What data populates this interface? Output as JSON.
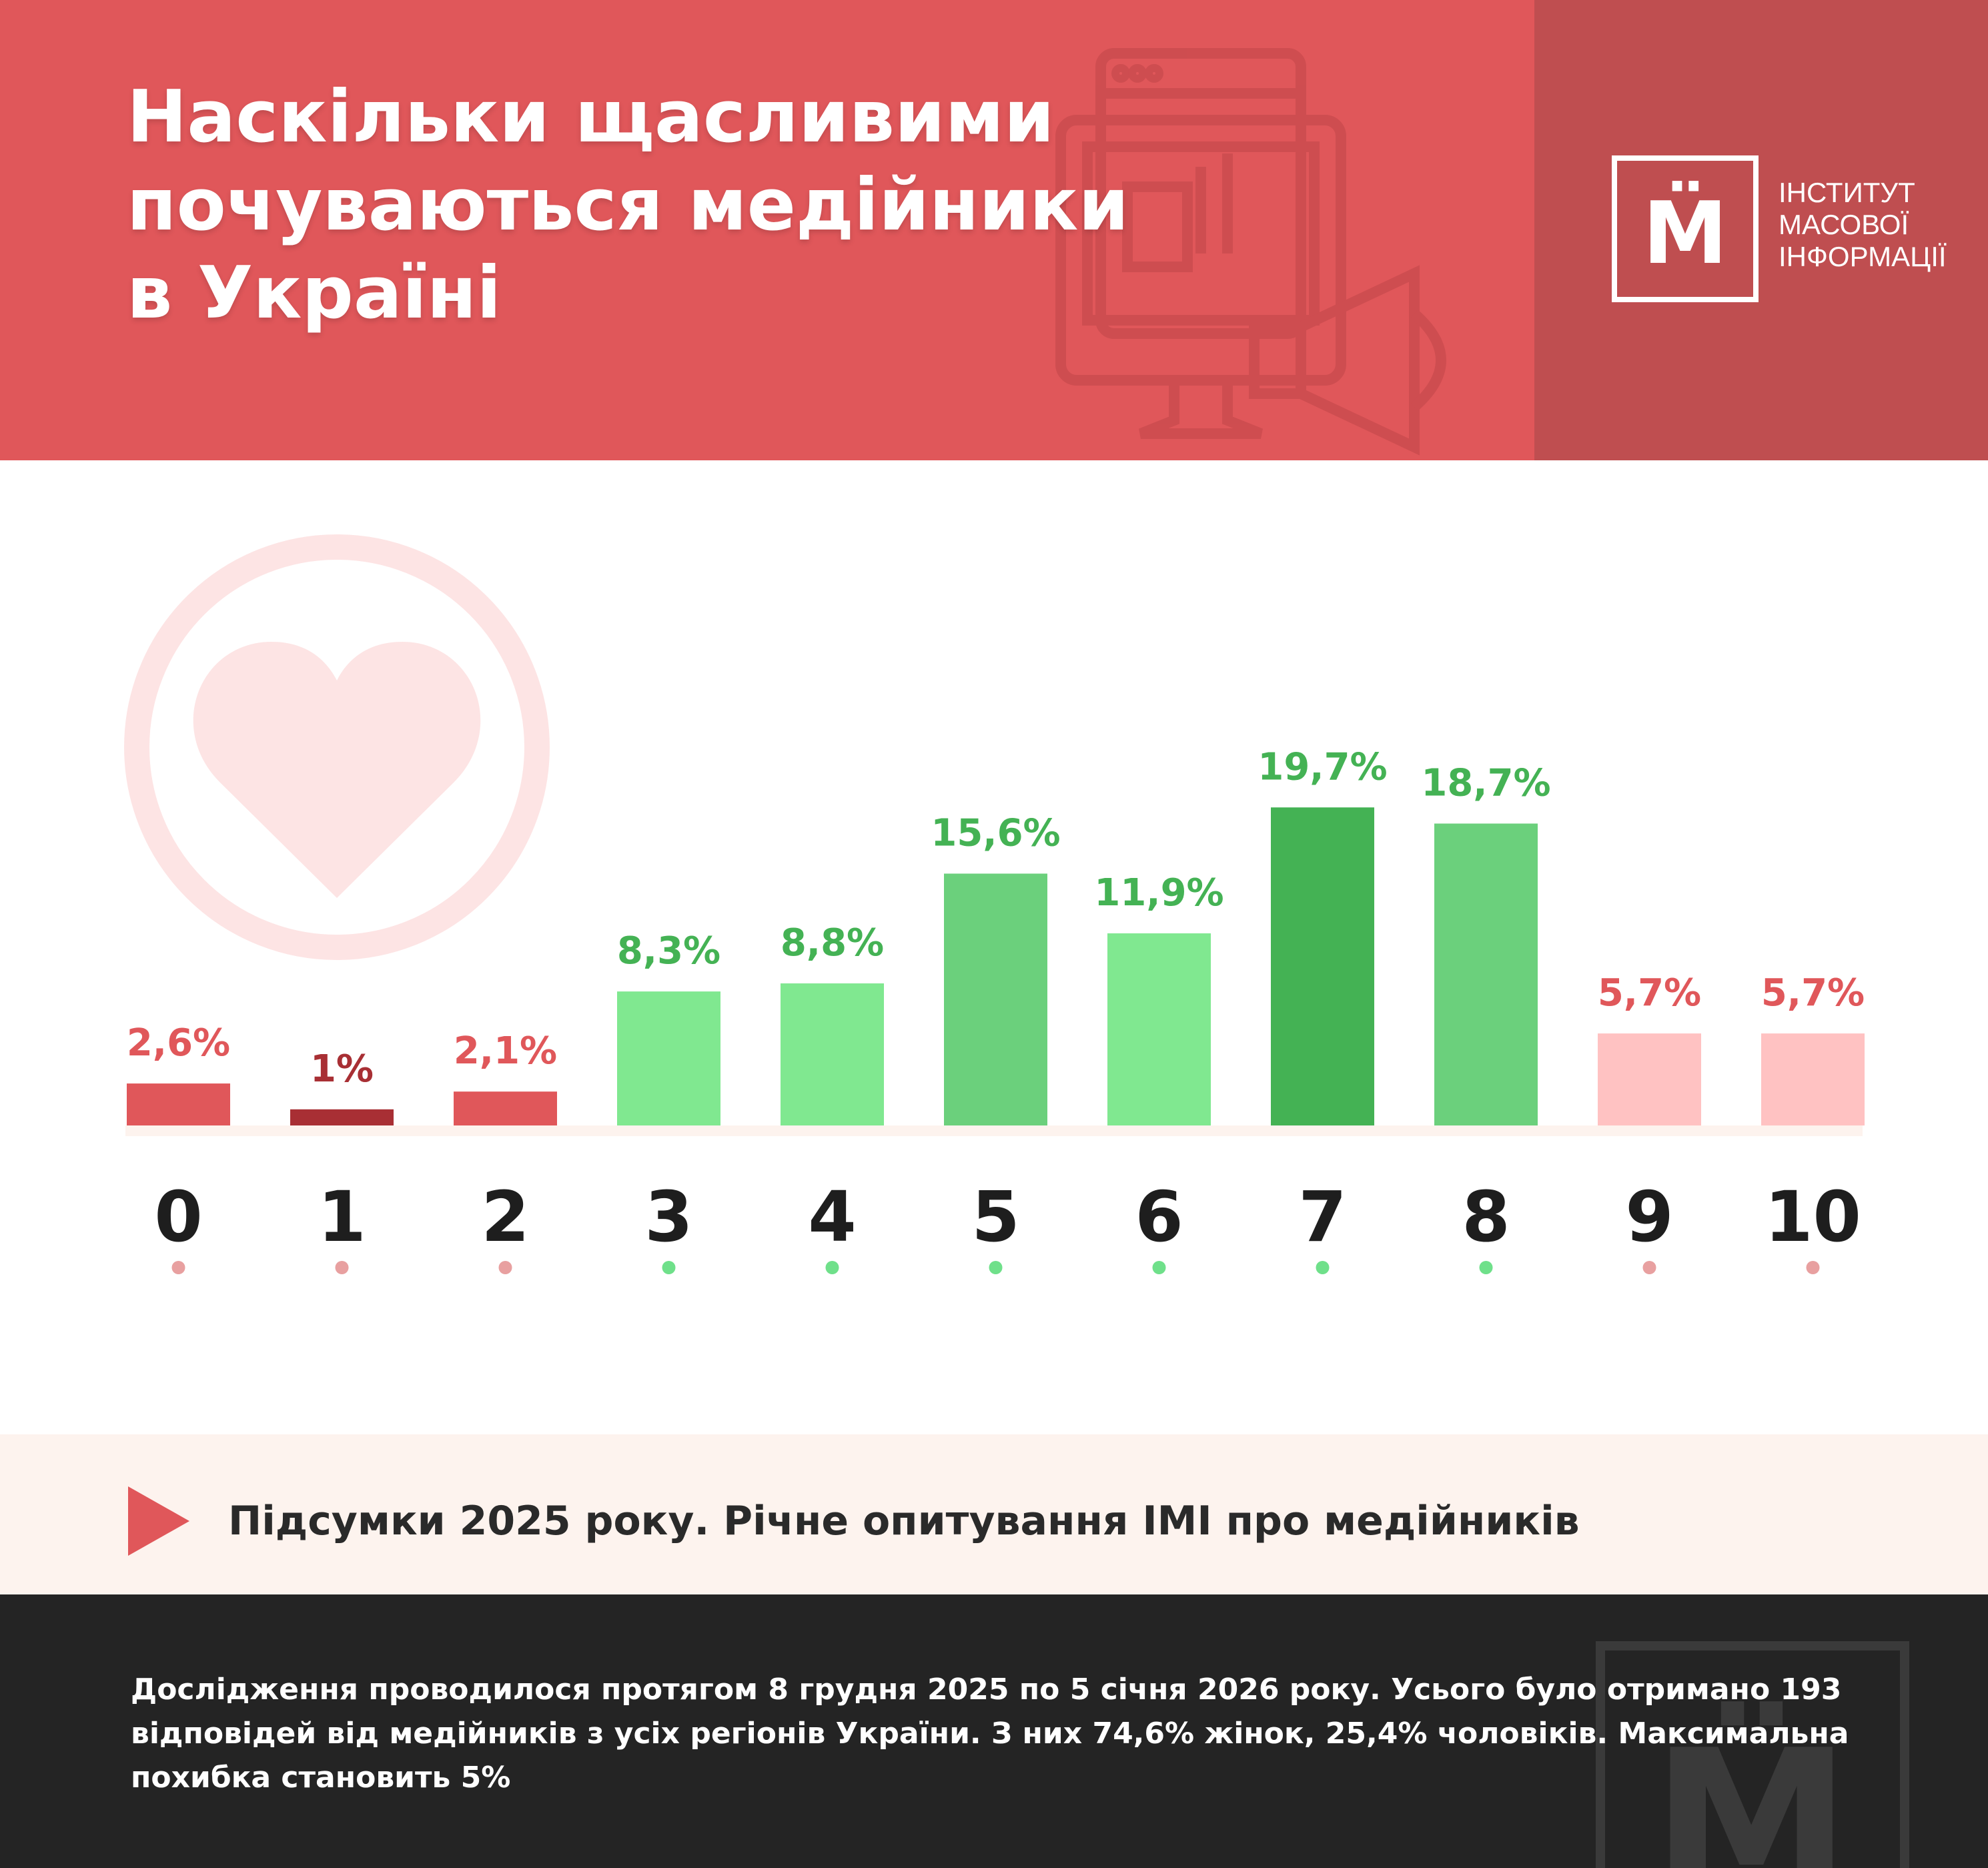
{
  "header": {
    "title_lines": [
      "Наскільки щасливими",
      "почуваються медійники",
      "в Україні"
    ],
    "logo_letter": "М̈",
    "logo_lines": [
      "ІНСТИТУТ",
      "МАСОВОЇ",
      "ІНФОРМАЦІЇ"
    ]
  },
  "chart_data": {
    "type": "bar",
    "categories": [
      "0",
      "1",
      "2",
      "3",
      "4",
      "5",
      "6",
      "7",
      "8",
      "9",
      "10"
    ],
    "values": [
      2.6,
      1,
      2.1,
      8.3,
      8.8,
      15.6,
      11.9,
      19.7,
      18.7,
      5.7,
      5.7
    ],
    "value_labels": [
      "2,6%",
      "1%",
      "2,1%",
      "8,3%",
      "8,8%",
      "15,6%",
      "11,9%",
      "19,7%",
      "18,7%",
      "5,7%",
      "5,7%"
    ],
    "bar_colors": [
      "#e0575a",
      "#a82f34",
      "#e0575a",
      "#80e890",
      "#80e890",
      "#6bd07c",
      "#80e890",
      "#44b254",
      "#6bd07c",
      "#ffc2c2",
      "#ffc2c2"
    ],
    "label_colors": [
      "#e0575a",
      "#a82f34",
      "#e0575a",
      "#44b254",
      "#44b254",
      "#44b254",
      "#44b254",
      "#44b254",
      "#44b254",
      "#e0575a",
      "#e0575a"
    ],
    "dot_colors": [
      "#e8a0a0",
      "#e8a0a0",
      "#e8a0a0",
      "#6fe08a",
      "#6fe08a",
      "#6fe08a",
      "#6fe08a",
      "#6fe08a",
      "#6fe08a",
      "#e8a0a0",
      "#e8a0a0"
    ],
    "grid": false,
    "legend": "none",
    "decor_icon": "heart-icon"
  },
  "note": {
    "icon": "play-triangle-icon",
    "text": "Підсумки 2025 року. Річне опитування ІМІ про медійників"
  },
  "footer": {
    "text": "Дослідження проводилося протягом 8 грудня 2025 по 5 січня 2026 року. Усього було отримано 193 відповідей від медійників з усіх регіонів України. З них 74,6% жінок, 25,4% чоловіків. Максимальна похибка становить 5%"
  }
}
